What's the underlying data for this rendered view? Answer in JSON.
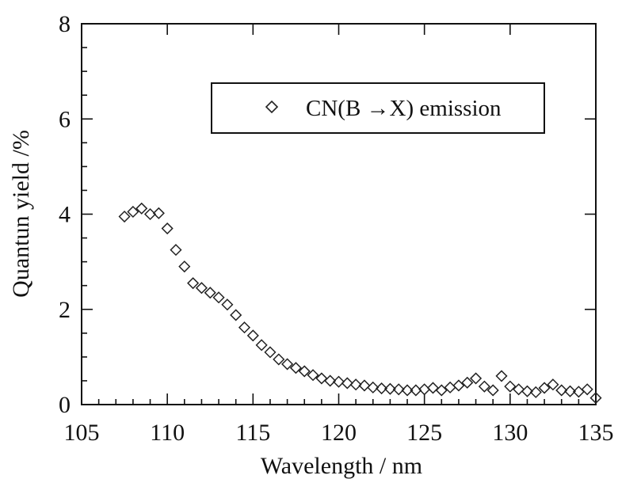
{
  "chart_data": {
    "type": "scatter",
    "xlabel": "Wavelength / nm",
    "ylabel": "Quantun yield /%",
    "xlim": [
      105,
      135
    ],
    "ylim": [
      0,
      8
    ],
    "xticks": [
      105,
      110,
      115,
      120,
      125,
      130,
      135
    ],
    "yticks": [
      0,
      2,
      4,
      6,
      8
    ],
    "marker": "open-diamond",
    "legend_position": "top-right",
    "series": [
      {
        "name": "CN(B →X) emission",
        "x": [
          107.5,
          108.0,
          108.5,
          109.0,
          109.5,
          110.0,
          110.5,
          111.0,
          111.5,
          112.0,
          112.5,
          113.0,
          113.5,
          114.0,
          114.5,
          115.0,
          115.5,
          116.0,
          116.5,
          117.0,
          117.5,
          118.0,
          118.5,
          119.0,
          119.5,
          120.0,
          120.5,
          121.0,
          121.5,
          122.0,
          122.5,
          123.0,
          123.5,
          124.0,
          124.5,
          125.0,
          125.5,
          126.0,
          126.5,
          127.0,
          127.5,
          128.0,
          128.5,
          129.0,
          129.5,
          130.0,
          130.5,
          131.0,
          131.5,
          132.0,
          132.5,
          133.0,
          133.5,
          134.0,
          134.5,
          135.0
        ],
        "y": [
          3.95,
          4.05,
          4.12,
          4.0,
          4.02,
          3.7,
          3.25,
          2.9,
          2.55,
          2.45,
          2.35,
          2.25,
          2.1,
          1.88,
          1.62,
          1.45,
          1.25,
          1.1,
          0.95,
          0.85,
          0.77,
          0.7,
          0.62,
          0.55,
          0.5,
          0.48,
          0.45,
          0.42,
          0.4,
          0.36,
          0.34,
          0.33,
          0.32,
          0.3,
          0.3,
          0.32,
          0.35,
          0.3,
          0.36,
          0.4,
          0.46,
          0.55,
          0.38,
          0.3,
          0.6,
          0.38,
          0.32,
          0.28,
          0.26,
          0.35,
          0.42,
          0.3,
          0.28,
          0.27,
          0.32,
          0.14
        ]
      }
    ]
  }
}
